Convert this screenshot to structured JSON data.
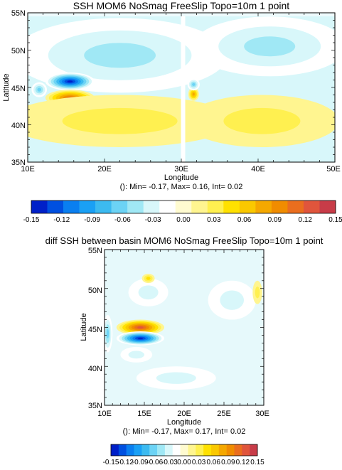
{
  "chart_data": [
    {
      "type": "heatmap",
      "title": "SSH MOM6 NoSmag FreeSlip Topo=10m 1 point",
      "xlabel": "Longitude",
      "ylabel": "Latitude",
      "xlim": [
        10,
        50
      ],
      "ylim": [
        35,
        55
      ],
      "x_ticks": [
        "10E",
        "20E",
        "30E",
        "40E",
        "50E"
      ],
      "y_ticks": [
        "35N",
        "40N",
        "45N",
        "50N",
        "55N"
      ],
      "stats": "(): Min= -0.17, Max= 0.16, Int= 0.02",
      "fields": [
        {
          "lon": 22.0,
          "lat": 49.3,
          "slon": 14.0,
          "slat": 5.0,
          "value": -0.045
        },
        {
          "lon": 15.5,
          "lat": 45.8,
          "slon": 3.2,
          "slat": 1.2,
          "value": -0.14
        },
        {
          "lon": 15.5,
          "lat": 43.6,
          "slon": 3.2,
          "slat": 1.1,
          "value": 0.11
        },
        {
          "lon": 22.0,
          "lat": 40.5,
          "slon": 15.0,
          "slat": 3.5,
          "value": 0.035
        },
        {
          "lon": 41.5,
          "lat": 50.5,
          "slon": 10.0,
          "slat": 4.0,
          "value": -0.045
        },
        {
          "lon": 40.5,
          "lat": 40.5,
          "slon": 10.0,
          "slat": 3.5,
          "value": 0.035
        },
        {
          "lon": 31.6,
          "lat": 44.1,
          "slon": 0.7,
          "slat": 0.9,
          "value": 0.08
        },
        {
          "lon": 31.6,
          "lat": 45.4,
          "slon": 0.8,
          "slat": 0.8,
          "value": -0.06
        },
        {
          "lon": 11.5,
          "lat": 44.7,
          "slon": 1.0,
          "slat": 1.0,
          "value": -0.06
        }
      ]
    },
    {
      "type": "heatmap",
      "title": "diff SSH between basin MOM6 NoSmag FreeSlip Topo=10m 1 point",
      "xlabel": "Longitude",
      "ylabel": "Latitude",
      "xlim": [
        10,
        30
      ],
      "ylim": [
        35,
        55
      ],
      "x_ticks": [
        "10E",
        "15E",
        "20E",
        "25E",
        "30E"
      ],
      "y_ticks": [
        "35N",
        "40N",
        "45N",
        "50N",
        "55N"
      ],
      "stats": "(): Min= -0.17, Max= 0.17, Int= 0.02",
      "fields": [
        {
          "lon": 14.5,
          "lat": 45.0,
          "slon": 3.0,
          "slat": 1.0,
          "value": 0.13
        },
        {
          "lon": 14.5,
          "lat": 43.6,
          "slon": 3.0,
          "slat": 0.9,
          "value": -0.14
        },
        {
          "lon": 10.4,
          "lat": 44.2,
          "slon": 0.6,
          "slat": 2.4,
          "value": -0.07
        },
        {
          "lon": 15.5,
          "lat": 49.5,
          "slon": 2.5,
          "slat": 1.8,
          "value": -0.035
        },
        {
          "lon": 19.0,
          "lat": 38.5,
          "slon": 5.0,
          "slat": 1.5,
          "value": -0.035
        },
        {
          "lon": 14.0,
          "lat": 41.5,
          "slon": 2.0,
          "slat": 1.0,
          "value": -0.035
        },
        {
          "lon": 26.0,
          "lat": 48.5,
          "slon": 3.0,
          "slat": 2.5,
          "value": -0.035
        },
        {
          "lon": 15.5,
          "lat": 51.3,
          "slon": 0.8,
          "slat": 0.6,
          "value": 0.04
        },
        {
          "lon": 29.2,
          "lat": 49.5,
          "slon": 0.6,
          "slat": 1.5,
          "value": 0.03
        }
      ]
    }
  ],
  "colorbar": {
    "labels": [
      "-0.15",
      "-0.12",
      "-0.09",
      "-0.06",
      "-0.03",
      "0.00",
      "0.03",
      "0.06",
      "0.09",
      "0.12",
      "0.15"
    ],
    "colors": [
      "#0020c8",
      "#0050e0",
      "#0a7ff0",
      "#1aa0f5",
      "#3cbaf0",
      "#6cd3f5",
      "#a0e8f5",
      "#d8f7fa",
      "#ffffff",
      "#fffbd0",
      "#fff590",
      "#fff050",
      "#ffe100",
      "#fac800",
      "#f5a800",
      "#f08c00",
      "#ea6e1e",
      "#e0553c",
      "#c83c48"
    ],
    "values": [
      -0.15,
      -0.12,
      -0.09,
      -0.06,
      -0.03,
      0.0,
      0.03,
      0.06,
      0.09,
      0.12,
      0.15
    ]
  }
}
